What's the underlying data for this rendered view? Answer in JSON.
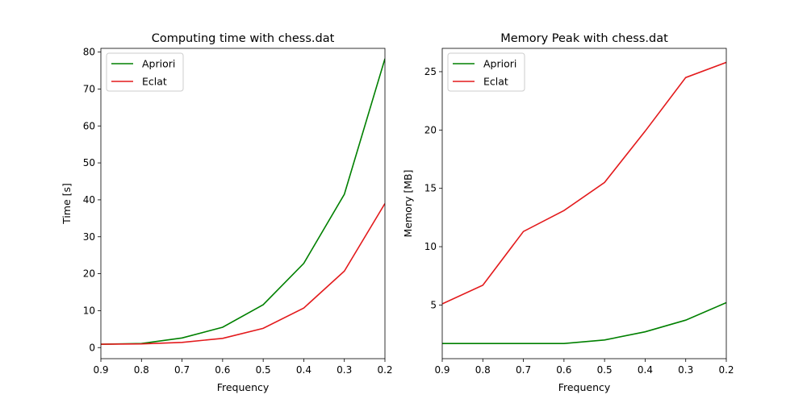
{
  "chart_data": [
    {
      "type": "line",
      "title": "Computing time with chess.dat",
      "xlabel": "Frequency",
      "ylabel": "Time [s]",
      "x": [
        0.9,
        0.8,
        0.7,
        0.6,
        0.5,
        0.4,
        0.3,
        0.2
      ],
      "xlim": [
        0.9,
        0.2
      ],
      "ylim": [
        -3,
        81
      ],
      "xticks": [
        "0.9",
        "0.8",
        "0.7",
        "0.6",
        "0.5",
        "0.4",
        "0.3",
        "0.2"
      ],
      "yticks": [
        0,
        10,
        20,
        30,
        40,
        50,
        60,
        70,
        80
      ],
      "legend": "top-left",
      "grid": false,
      "series": [
        {
          "name": "Apriori",
          "color": "#008000",
          "values": [
            0.9,
            1.1,
            2.6,
            5.5,
            11.6,
            22.8,
            41.5,
            78.2
          ]
        },
        {
          "name": "Eclat",
          "color": "#e31a1c",
          "values": [
            0.9,
            1.0,
            1.4,
            2.5,
            5.2,
            10.7,
            20.7,
            39.0
          ]
        }
      ]
    },
    {
      "type": "line",
      "title": "Memory Peak with chess.dat",
      "xlabel": "Frequency",
      "ylabel": "Memory [MB]",
      "x": [
        0.9,
        0.8,
        0.7,
        0.6,
        0.5,
        0.4,
        0.3,
        0.2
      ],
      "xlim": [
        0.9,
        0.2
      ],
      "ylim": [
        0.4,
        27.0
      ],
      "xticks": [
        "0.9",
        "0.8",
        "0.7",
        "0.6",
        "0.5",
        "0.4",
        "0.3",
        "0.2"
      ],
      "yticks": [
        5,
        10,
        15,
        20,
        25
      ],
      "legend": "top-left",
      "grid": false,
      "series": [
        {
          "name": "Apriori",
          "color": "#008000",
          "values": [
            1.7,
            1.7,
            1.7,
            1.7,
            2.0,
            2.7,
            3.7,
            5.2
          ]
        },
        {
          "name": "Eclat",
          "color": "#e31a1c",
          "values": [
            5.1,
            6.7,
            11.3,
            13.1,
            15.5,
            19.9,
            24.5,
            25.8
          ]
        }
      ]
    }
  ]
}
